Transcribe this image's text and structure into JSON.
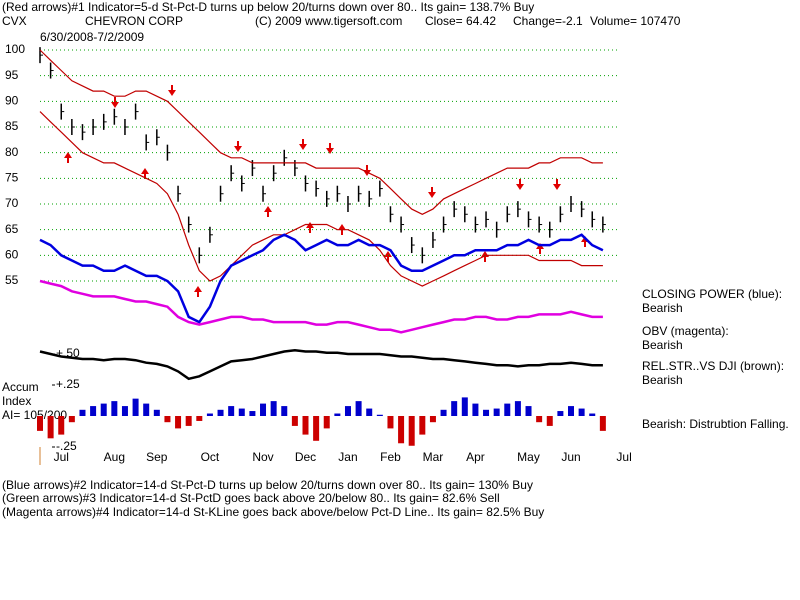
{
  "header": {
    "line1": "(Red arrows)#1 Indicator=5-d St-Pct-D turns up below 20/turns down over 80.. Its gain= 138.7% Buy",
    "symbol": "CVX",
    "company": "CHEVRON CORP",
    "copyright": "(C) 2009 www.tigersoft.com",
    "close": "Close=  64.42",
    "change": "Change=-2.1",
    "volume": "Volume= 107470",
    "date_range": "6/30/2008-7/2/2009"
  },
  "accum_label": {
    "line1": "Accum",
    "line2": "Index",
    "line3": "AI= 105/200"
  },
  "verdict": "Bearish:  Distrubtion Falling.",
  "footer": [
    "(Blue arrows)#2 Indicator=14-d St-Pct-D turns up below 20/turns down over 80.. Its gain= 130% Buy",
    "(Green arrows)#3 Indicator=14-d St-PctD goes back above 20/below 80.. Its gain= 82.6% Sell",
    "(Magenta arrows)#4 Indicator=14-d St-KLine goes back above/below Pct-D Line.. Its gain= 82.5% Buy"
  ],
  "chart_data": {
    "type": "line",
    "categories": [
      null,
      null,
      "Jul",
      null,
      null,
      null,
      null,
      "Aug",
      null,
      null,
      null,
      "Sep",
      null,
      null,
      null,
      null,
      "Oct",
      null,
      null,
      null,
      null,
      "Nov",
      null,
      null,
      null,
      "Dec",
      null,
      null,
      null,
      "Jan",
      null,
      null,
      null,
      "Feb",
      null,
      null,
      null,
      "Mar",
      null,
      null,
      null,
      "Apr",
      null,
      null,
      null,
      null,
      "May",
      null,
      null,
      null,
      "Jun",
      null,
      null,
      null,
      null,
      "Jul"
    ],
    "ylim": [
      40,
      100
    ],
    "yticks": [
      55,
      60,
      65,
      70,
      75,
      80,
      85,
      90,
      95,
      100
    ],
    "grid": true,
    "y2lim": [
      -0.3,
      0.6
    ],
    "y2ticks": [
      {
        "value": 0.5,
        "label": "+.50"
      },
      {
        "value": 0.25,
        "label": "+.25"
      },
      {
        "value": -0.25,
        "label": "-.25"
      }
    ],
    "series": [
      {
        "style": "price",
        "color": "#000000",
        "values": [
          99,
          96,
          88,
          85,
          84,
          85,
          86,
          87,
          85,
          88,
          82,
          83,
          80,
          72,
          66,
          60,
          64,
          72,
          76,
          74,
          77,
          72,
          76,
          79,
          77,
          74,
          73,
          71,
          72,
          70,
          72,
          71,
          73,
          68,
          66,
          62,
          60,
          63,
          66,
          69,
          68,
          66,
          67,
          65,
          68,
          69,
          67,
          66,
          65,
          68,
          70,
          69,
          67,
          66,
          null,
          null
        ]
      },
      {
        "style": "band",
        "color": "#c00000",
        "values": [
          100,
          98,
          96,
          94,
          93,
          92,
          92,
          91,
          91,
          92,
          92,
          91,
          90,
          88,
          86,
          84,
          82,
          80,
          79,
          79,
          78,
          78,
          78,
          78,
          78,
          78,
          77,
          77,
          77,
          77,
          77,
          76,
          75,
          73,
          71,
          69,
          68,
          69,
          71,
          72,
          73,
          74,
          75,
          76,
          77,
          77,
          77,
          78,
          78,
          79,
          79,
          79,
          78,
          78,
          null,
          null
        ]
      },
      {
        "style": "band",
        "color": "#c00000",
        "values": [
          88,
          86,
          84,
          82,
          80,
          79,
          78,
          78,
          77,
          76,
          75,
          74,
          72,
          68,
          62,
          57,
          55,
          56,
          58,
          60,
          62,
          63,
          64,
          64,
          65,
          66,
          66,
          66,
          65,
          65,
          64,
          63,
          61,
          58,
          56,
          55,
          54,
          55,
          56,
          57,
          58,
          59,
          60,
          60,
          60,
          60,
          60,
          59,
          59,
          59,
          59,
          58,
          58,
          58,
          null,
          null
        ]
      },
      {
        "name": "CLOSING POWER (blue):",
        "status": "Bearish",
        "style": "thick",
        "color": "#0000e0",
        "values": [
          63,
          62,
          60,
          59,
          58,
          58,
          57,
          57,
          58,
          57,
          56,
          56,
          55,
          53,
          48,
          47,
          50,
          55,
          58,
          59,
          60,
          61,
          63,
          64,
          63,
          61,
          62,
          63,
          62,
          62,
          63,
          62,
          62,
          61,
          58,
          57,
          57,
          58,
          59,
          60,
          60,
          61,
          61,
          61,
          62,
          62,
          63,
          62,
          62,
          63,
          63,
          64,
          62,
          61,
          null,
          null
        ]
      },
      {
        "name": "OBV (magenta):",
        "status": "Bearish",
        "style": "thick",
        "color": "#e000e0",
        "values": [
          55,
          54.5,
          54,
          53,
          52.5,
          52,
          52,
          52,
          51.5,
          51,
          51,
          50.5,
          50,
          48,
          47,
          46.5,
          47,
          47.5,
          48,
          48,
          47.5,
          47.5,
          47,
          47,
          47,
          47,
          46.5,
          46.5,
          47,
          47,
          46.5,
          46,
          45.5,
          45.5,
          45,
          45.5,
          46,
          46.5,
          47,
          47.5,
          47.5,
          48,
          48,
          47.5,
          47.5,
          48,
          48,
          48.5,
          48.5,
          48.5,
          49,
          48.5,
          48,
          48,
          null,
          null
        ]
      },
      {
        "name": "REL.STR..VS DJI (brown):",
        "status": "Bearish",
        "style": "thick",
        "axis": "y2",
        "color": "#000000",
        "values": [
          0.52,
          0.5,
          0.48,
          0.47,
          0.46,
          0.46,
          0.45,
          0.46,
          0.46,
          0.45,
          0.43,
          0.42,
          0.4,
          0.36,
          0.3,
          0.32,
          0.36,
          0.4,
          0.44,
          0.45,
          0.46,
          0.48,
          0.5,
          0.52,
          0.53,
          0.52,
          0.52,
          0.51,
          0.51,
          0.5,
          0.5,
          0.5,
          0.5,
          0.49,
          0.48,
          0.48,
          0.47,
          0.46,
          0.46,
          0.45,
          0.44,
          0.43,
          0.42,
          0.41,
          0.41,
          0.4,
          0.41,
          0.41,
          0.42,
          0.42,
          0.43,
          0.42,
          0.41,
          0.41,
          null,
          null
        ]
      },
      {
        "style": "bars",
        "axis": "y2",
        "color": "#0000cc",
        "negative_color": "#cc0000",
        "values": [
          -0.12,
          -0.18,
          -0.15,
          -0.05,
          0.05,
          0.08,
          0.1,
          0.12,
          0.08,
          0.14,
          0.1,
          0.05,
          -0.05,
          -0.1,
          -0.08,
          -0.04,
          0.02,
          0.05,
          0.08,
          0.06,
          0.04,
          0.1,
          0.12,
          0.08,
          -0.08,
          -0.15,
          -0.2,
          -0.1,
          0.02,
          0.08,
          0.12,
          0.06,
          0.01,
          -0.1,
          -0.22,
          -0.24,
          -0.15,
          -0.05,
          0.05,
          0.12,
          0.15,
          0.1,
          0.05,
          0.06,
          0.1,
          0.12,
          0.08,
          -0.05,
          -0.08,
          0.04,
          0.08,
          0.06,
          0.02,
          -0.12,
          null,
          null
        ]
      }
    ]
  }
}
